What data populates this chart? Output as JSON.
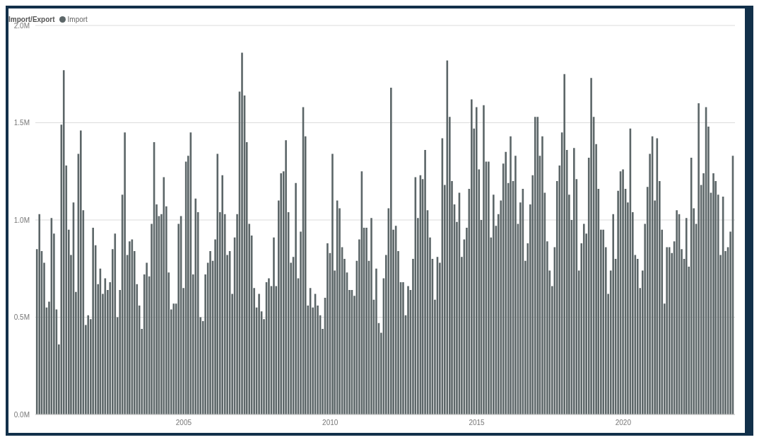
{
  "chart_data": {
    "type": "bar",
    "legend_title": "Import/Export",
    "legend": "top left",
    "grid": "y",
    "x": [
      "2000-01",
      "2000-02",
      "2000-03",
      "2000-04",
      "2000-05",
      "2000-06",
      "2000-07",
      "2000-08",
      "2000-09",
      "2000-10",
      "2000-11",
      "2000-12",
      "2001-01",
      "2001-02",
      "2001-03",
      "2001-04",
      "2001-05",
      "2001-06",
      "2001-07",
      "2001-08",
      "2001-09",
      "2001-10",
      "2001-11",
      "2001-12",
      "2002-01",
      "2002-02",
      "2002-03",
      "2002-04",
      "2002-05",
      "2002-06",
      "2002-07",
      "2002-08",
      "2002-09",
      "2002-10",
      "2002-11",
      "2002-12",
      "2003-01",
      "2003-02",
      "2003-03",
      "2003-04",
      "2003-05",
      "2003-06",
      "2003-07",
      "2003-08",
      "2003-09",
      "2003-10",
      "2003-11",
      "2003-12",
      "2004-01",
      "2004-02",
      "2004-03",
      "2004-04",
      "2004-05",
      "2004-06",
      "2004-07",
      "2004-08",
      "2004-09",
      "2004-10",
      "2004-11",
      "2004-12",
      "2005-01",
      "2005-02",
      "2005-03",
      "2005-04",
      "2005-05",
      "2005-06",
      "2005-07",
      "2005-08",
      "2005-09",
      "2005-10",
      "2005-11",
      "2005-12",
      "2006-01",
      "2006-02",
      "2006-03",
      "2006-04",
      "2006-05",
      "2006-06",
      "2006-07",
      "2006-08",
      "2006-09",
      "2006-10",
      "2006-11",
      "2006-12",
      "2007-01",
      "2007-02",
      "2007-03",
      "2007-04",
      "2007-05",
      "2007-06",
      "2007-07",
      "2007-08",
      "2007-09",
      "2007-10",
      "2007-11",
      "2007-12",
      "2008-01",
      "2008-02",
      "2008-03",
      "2008-04",
      "2008-05",
      "2008-06",
      "2008-07",
      "2008-08",
      "2008-09",
      "2008-10",
      "2008-11",
      "2008-12",
      "2009-01",
      "2009-02",
      "2009-03",
      "2009-04",
      "2009-05",
      "2009-06",
      "2009-07",
      "2009-08",
      "2009-09",
      "2009-10",
      "2009-11",
      "2009-12",
      "2010-01",
      "2010-02",
      "2010-03",
      "2010-04",
      "2010-05",
      "2010-06",
      "2010-07",
      "2010-08",
      "2010-09",
      "2010-10",
      "2010-11",
      "2010-12",
      "2011-01",
      "2011-02",
      "2011-03",
      "2011-04",
      "2011-05",
      "2011-06",
      "2011-07",
      "2011-08",
      "2011-09",
      "2011-10",
      "2011-11",
      "2011-12",
      "2012-01",
      "2012-02",
      "2012-03",
      "2012-04",
      "2012-05",
      "2012-06",
      "2012-07",
      "2012-08",
      "2012-09",
      "2012-10",
      "2012-11",
      "2012-12",
      "2013-01",
      "2013-02",
      "2013-03",
      "2013-04",
      "2013-05",
      "2013-06",
      "2013-07",
      "2013-08",
      "2013-09",
      "2013-10",
      "2013-11",
      "2013-12",
      "2014-01",
      "2014-02",
      "2014-03",
      "2014-04",
      "2014-05",
      "2014-06",
      "2014-07",
      "2014-08",
      "2014-09",
      "2014-10",
      "2014-11",
      "2014-12",
      "2015-01",
      "2015-02",
      "2015-03",
      "2015-04",
      "2015-05",
      "2015-06",
      "2015-07",
      "2015-08",
      "2015-09",
      "2015-10",
      "2015-11",
      "2015-12",
      "2016-01",
      "2016-02",
      "2016-03",
      "2016-04",
      "2016-05",
      "2016-06",
      "2016-07",
      "2016-08",
      "2016-09",
      "2016-10",
      "2016-11",
      "2016-12",
      "2017-01",
      "2017-02",
      "2017-03",
      "2017-04",
      "2017-05",
      "2017-06",
      "2017-07",
      "2017-08",
      "2017-09",
      "2017-10",
      "2017-11",
      "2017-12",
      "2018-01",
      "2018-02",
      "2018-03",
      "2018-04",
      "2018-05",
      "2018-06",
      "2018-07",
      "2018-08",
      "2018-09",
      "2018-10",
      "2018-11",
      "2018-12",
      "2019-01",
      "2019-02",
      "2019-03",
      "2019-04",
      "2019-05",
      "2019-06",
      "2019-07",
      "2019-08",
      "2019-09",
      "2019-10",
      "2019-11",
      "2019-12",
      "2020-01",
      "2020-02",
      "2020-03",
      "2020-04",
      "2020-05",
      "2020-06",
      "2020-07",
      "2020-08",
      "2020-09",
      "2020-10",
      "2020-11",
      "2020-12",
      "2021-01",
      "2021-02",
      "2021-03",
      "2021-04",
      "2021-05",
      "2021-06",
      "2021-07",
      "2021-08",
      "2021-09",
      "2021-10",
      "2021-11",
      "2021-12",
      "2022-01",
      "2022-02",
      "2022-03",
      "2022-04",
      "2022-05",
      "2022-06",
      "2022-07",
      "2022-08",
      "2022-09",
      "2022-10",
      "2022-11",
      "2022-12",
      "2023-01",
      "2023-02",
      "2023-03",
      "2023-04",
      "2023-05",
      "2023-06",
      "2023-07",
      "2023-08",
      "2023-09",
      "2023-10"
    ],
    "series": [
      {
        "name": "Import",
        "color": "#5c6668",
        "values": [
          0.85,
          1.03,
          0.84,
          0.78,
          0.55,
          0.58,
          1.01,
          0.93,
          0.54,
          0.36,
          1.49,
          1.77,
          1.28,
          0.95,
          0.82,
          1.09,
          0.63,
          1.34,
          1.46,
          1.05,
          0.46,
          0.51,
          0.49,
          0.96,
          0.87,
          0.67,
          0.75,
          0.62,
          0.7,
          0.64,
          0.68,
          0.85,
          0.93,
          0.5,
          0.64,
          1.13,
          1.45,
          0.82,
          0.89,
          0.9,
          0.84,
          0.67,
          0.56,
          0.44,
          0.72,
          0.78,
          0.71,
          0.98,
          1.4,
          1.08,
          1.02,
          1.03,
          1.22,
          1.07,
          0.73,
          0.54,
          0.57,
          0.57,
          0.98,
          1.02,
          0.65,
          1.3,
          1.33,
          1.45,
          0.72,
          1.11,
          1.04,
          0.5,
          0.48,
          0.72,
          0.78,
          0.84,
          0.79,
          0.9,
          1.34,
          1.04,
          1.23,
          1.03,
          0.82,
          0.84,
          0.62,
          0.91,
          1.03,
          1.66,
          1.86,
          1.64,
          1.4,
          0.98,
          0.92,
          0.65,
          0.55,
          0.62,
          0.53,
          0.49,
          0.68,
          0.7,
          0.66,
          0.91,
          0.66,
          1.1,
          1.24,
          1.25,
          1.41,
          1.04,
          0.78,
          0.81,
          1.19,
          0.7,
          0.94,
          1.58,
          1.43,
          0.56,
          0.65,
          0.55,
          0.62,
          0.56,
          0.51,
          0.44,
          0.6,
          0.88,
          0.83,
          1.34,
          0.74,
          1.1,
          1.06,
          0.86,
          0.8,
          0.73,
          0.64,
          0.64,
          0.61,
          0.79,
          0.9,
          1.25,
          0.96,
          0.96,
          0.79,
          1.01,
          0.59,
          0.75,
          0.47,
          0.42,
          0.7,
          0.82,
          1.06,
          1.68,
          0.95,
          0.97,
          0.84,
          0.68,
          0.68,
          0.51,
          0.66,
          0.64,
          0.8,
          1.22,
          1.01,
          1.23,
          1.21,
          1.36,
          1.05,
          0.91,
          0.8,
          0.59,
          0.81,
          0.78,
          1.42,
          1.18,
          1.82,
          1.53,
          1.2,
          1.08,
          0.99,
          1.14,
          0.81,
          0.9,
          0.96,
          1.16,
          1.62,
          1.47,
          1.58,
          1.26,
          1.0,
          1.59,
          1.3,
          1.3,
          0.91,
          1.13,
          0.97,
          1.03,
          1.1,
          1.29,
          1.35,
          1.19,
          1.43,
          1.2,
          1.33,
          0.98,
          1.09,
          1.16,
          0.79,
          0.88,
          1.08,
          1.23,
          1.53,
          1.53,
          1.33,
          1.43,
          1.14,
          0.89,
          0.74,
          0.66,
          0.86,
          1.2,
          1.28,
          1.45,
          1.75,
          1.36,
          1.13,
          1.0,
          1.37,
          1.21,
          0.74,
          0.88,
          0.98,
          0.93,
          1.32,
          1.73,
          1.53,
          1.39,
          1.16,
          0.95,
          0.95,
          0.86,
          0.62,
          0.74,
          1.03,
          0.8,
          1.15,
          1.25,
          1.26,
          1.16,
          1.09,
          1.47,
          1.04,
          0.82,
          0.8,
          0.65,
          0.74,
          0.98,
          1.17,
          1.34,
          1.43,
          1.1,
          1.42,
          1.2,
          0.95,
          0.57,
          0.86,
          0.86,
          0.83,
          0.89,
          1.05,
          1.03,
          0.85,
          0.8,
          1.01,
          0.76,
          1.32,
          1.06,
          0.98,
          1.6,
          1.18,
          1.24,
          1.58,
          1.48,
          1.14,
          1.24,
          1.2,
          1.13,
          0.82,
          1.12,
          0.84,
          0.86,
          0.94,
          1.33
        ]
      }
    ],
    "xlim": [
      "1999-12-10",
      "2023-10-25"
    ],
    "xticks": [
      "2005",
      "2010",
      "2015",
      "2020"
    ],
    "ylim": [
      0,
      2
    ],
    "yticks": [
      {
        "value": 0,
        "label": "0.0M"
      },
      {
        "value": 0.5,
        "label": "0.5M"
      },
      {
        "value": 1,
        "label": "1.0M"
      },
      {
        "value": 1.5,
        "label": "1.5M"
      },
      {
        "value": 2,
        "label": "2.0M"
      }
    ]
  }
}
